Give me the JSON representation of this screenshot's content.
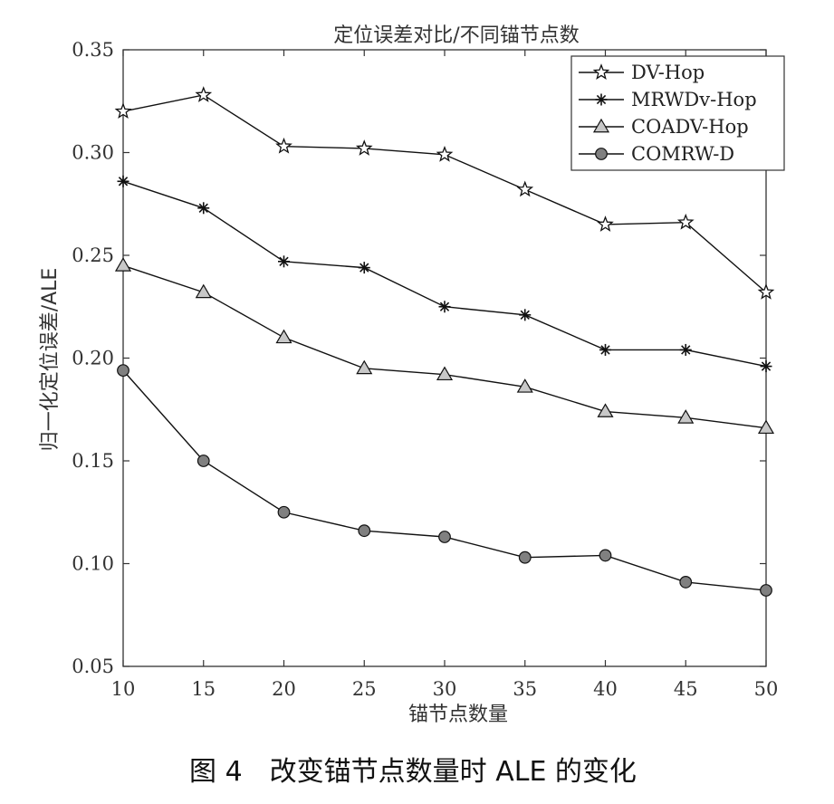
{
  "chart_data": {
    "type": "line",
    "title": "定位误差对比/不同锚节点数",
    "xlabel": "锚节点数量",
    "ylabel": "归一化定位误差/ALE",
    "x": [
      10,
      15,
      20,
      25,
      30,
      35,
      40,
      45,
      50
    ],
    "xlim": [
      10,
      50
    ],
    "ylim": [
      0.05,
      0.35
    ],
    "xticks": [
      "10",
      "15",
      "20",
      "25",
      "30",
      "35",
      "40",
      "45",
      "50"
    ],
    "yticks": [
      "0.05",
      "0.10",
      "0.15",
      "0.20",
      "0.25",
      "0.30",
      "0.35"
    ],
    "grid": false,
    "legend_position": "top-right",
    "series": [
      {
        "name": "DV-Hop",
        "marker": "star",
        "values": [
          0.32,
          0.328,
          0.303,
          0.302,
          0.299,
          0.282,
          0.265,
          0.266,
          0.232
        ]
      },
      {
        "name": "MRWDv-Hop",
        "marker": "asterisk",
        "values": [
          0.286,
          0.273,
          0.247,
          0.244,
          0.225,
          0.221,
          0.204,
          0.204,
          0.196
        ]
      },
      {
        "name": "COADV-Hop",
        "marker": "triangle",
        "values": [
          0.245,
          0.232,
          0.21,
          0.195,
          0.192,
          0.186,
          0.174,
          0.171,
          0.166
        ]
      },
      {
        "name": "COMRW-D",
        "marker": "circle",
        "values": [
          0.194,
          0.15,
          0.125,
          0.116,
          0.113,
          0.103,
          0.104,
          0.091,
          0.087
        ]
      }
    ]
  },
  "caption": "图 4　改变锚节点数量时 ALE 的变化"
}
